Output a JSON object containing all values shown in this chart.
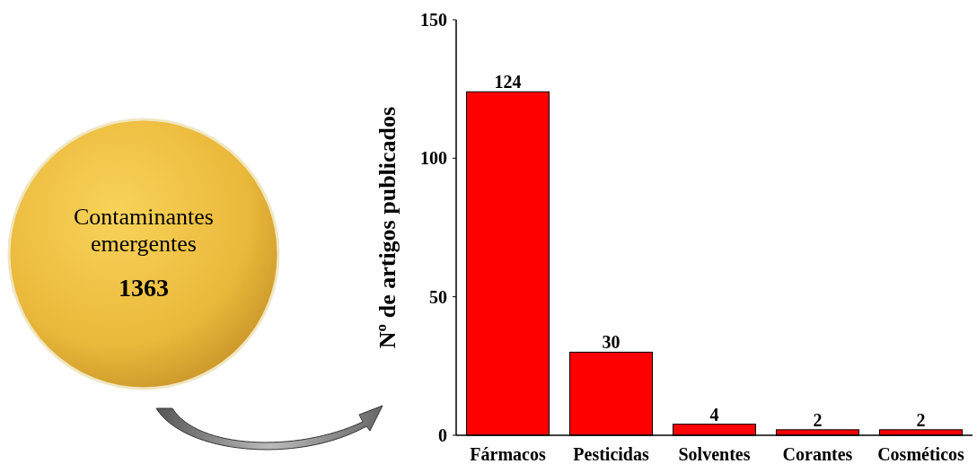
{
  "chart_data": {
    "type": "bar",
    "ylabel": "Nº de artigos publicados",
    "categories": [
      "Fármacos",
      "Pesticidas",
      "Solventes",
      "Corantes",
      "Cosméticos"
    ],
    "values": [
      124,
      30,
      4,
      2,
      2
    ],
    "color": "#ff0000",
    "ylim": [
      0,
      150
    ],
    "yticks": [
      0,
      50,
      100,
      150
    ],
    "grid": false,
    "data_labels": true,
    "annotations": [
      "Contaminantes emergentes",
      "1363"
    ]
  }
}
